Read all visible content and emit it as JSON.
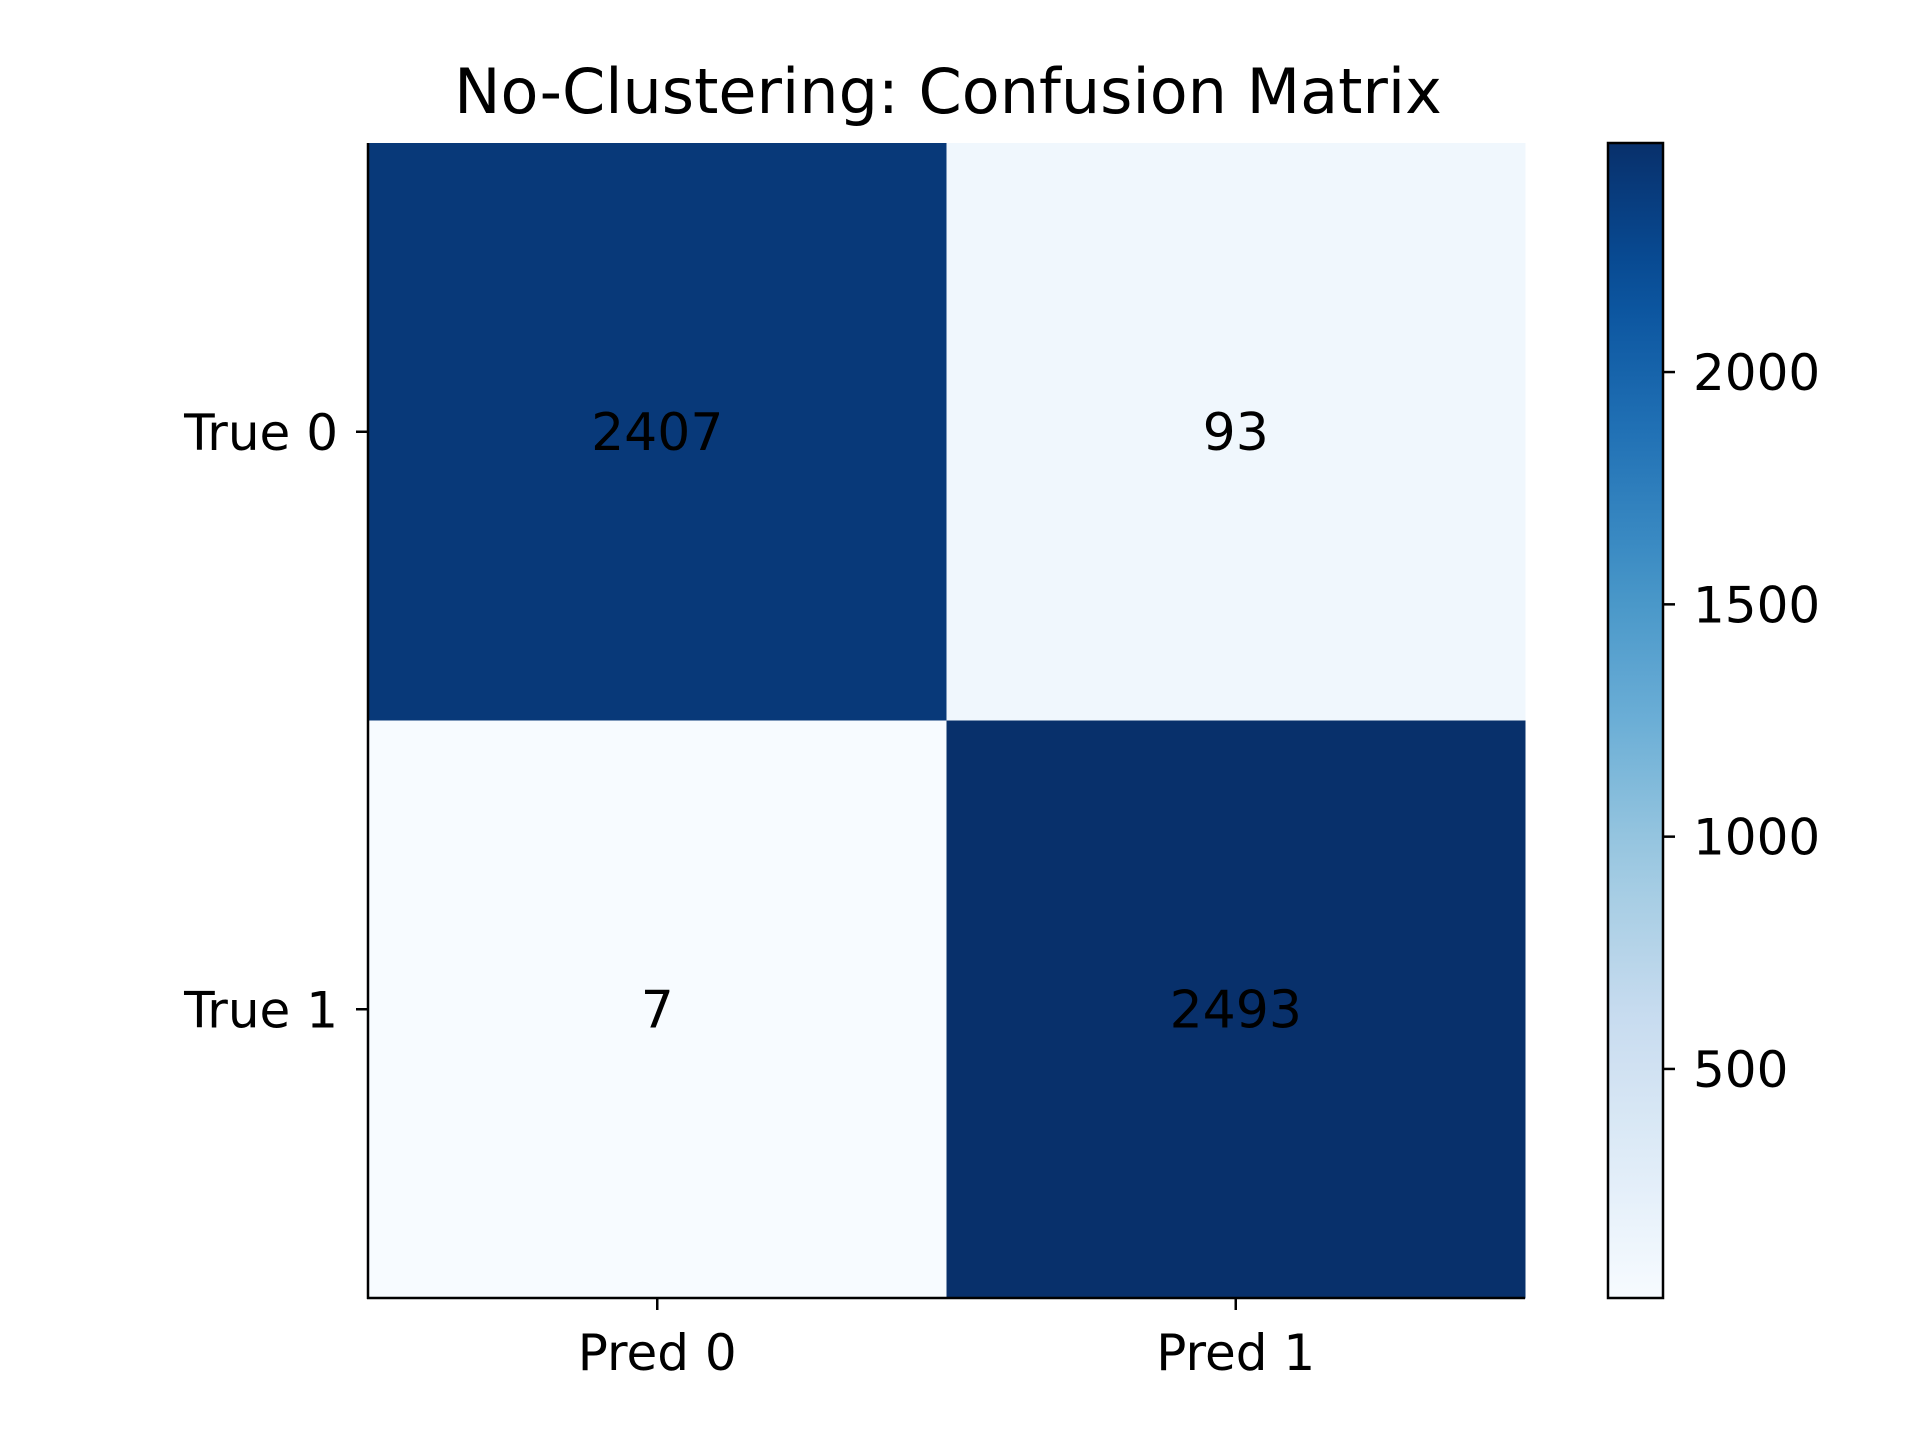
{
  "chart_data": {
    "type": "heatmap",
    "title": "No-Clustering: Confusion Matrix",
    "xlabel": "",
    "ylabel": "",
    "x_categories": [
      "Pred 0",
      "Pred 1"
    ],
    "y_categories": [
      "True 0",
      "True 1"
    ],
    "values": [
      [
        2407,
        93
      ],
      [
        7,
        2493
      ]
    ],
    "colormap": "Blues",
    "colorbar": {
      "range": [
        7,
        2493
      ],
      "ticks": [
        500,
        1000,
        1500,
        2000
      ],
      "tick_labels": [
        "500",
        "1000",
        "1500",
        "2000"
      ]
    },
    "grid": false,
    "colors": {
      "blues_ramp": [
        "#f7fbff",
        "#deebf7",
        "#c6dbef",
        "#9ecae1",
        "#6baed6",
        "#4292c6",
        "#2171b5",
        "#08519c",
        "#08306b"
      ],
      "text": "#000000",
      "axis": "#000000"
    }
  }
}
